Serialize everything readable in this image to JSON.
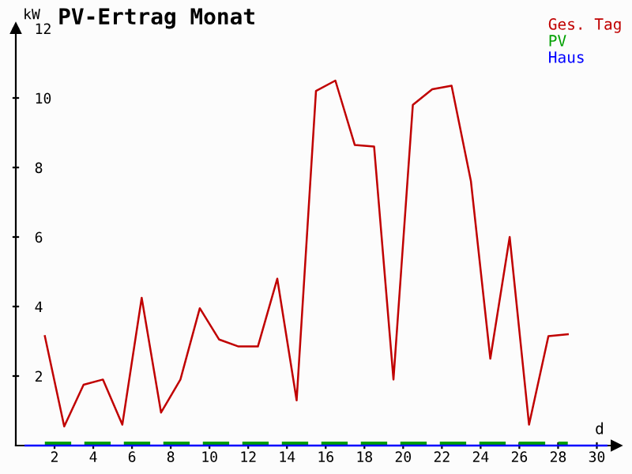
{
  "chart_data": {
    "type": "line",
    "title": "PV-Ertrag Monat",
    "ylabel": "kW",
    "xlabel": "d",
    "x": [
      1.5,
      2.5,
      3.5,
      4.5,
      5.5,
      6.5,
      7.5,
      8.5,
      9.5,
      10.5,
      11.5,
      12.5,
      13.5,
      14.5,
      15.5,
      16.5,
      17.5,
      18.5,
      19.5,
      20.5,
      21.5,
      22.5,
      23.5,
      24.5,
      25.5,
      26.5,
      27.5,
      28.5
    ],
    "series": [
      {
        "name": "Ges. Tag",
        "color": "#c00000",
        "values": [
          3.15,
          0.55,
          1.75,
          1.9,
          0.6,
          4.25,
          0.95,
          1.9,
          3.95,
          3.05,
          2.85,
          2.85,
          4.8,
          1.3,
          10.2,
          10.5,
          8.65,
          8.6,
          1.9,
          9.8,
          10.25,
          10.35,
          7.6,
          2.5,
          6.0,
          0.6,
          3.15,
          3.2
        ]
      },
      {
        "name": "PV",
        "color": "#00a000",
        "line_style": "dashed",
        "values": [
          0.05,
          0.05,
          0.05,
          0.05,
          0.05,
          0.05,
          0.05,
          0.05,
          0.05,
          0.05,
          0.05,
          0.05,
          0.05,
          0.05,
          0.05,
          0.05,
          0.05,
          0.05,
          0.05,
          0.05,
          0.05,
          0.05,
          0.05,
          0.05,
          0.05,
          0.05,
          0.05,
          0.05
        ]
      },
      {
        "name": "Haus",
        "color": "#0000ff",
        "x": [
          0.5,
          30.5
        ],
        "values": [
          0,
          0
        ]
      }
    ],
    "xlim": [
      0,
      31
    ],
    "xticks": [
      2,
      4,
      6,
      8,
      10,
      12,
      14,
      16,
      18,
      20,
      22,
      24,
      26,
      28,
      30
    ],
    "ylim": [
      0,
      12
    ],
    "yticks": [
      2,
      4,
      6,
      8,
      10,
      12
    ],
    "grid": false,
    "legend": "top right",
    "marker": "none",
    "line_style": "solid"
  }
}
